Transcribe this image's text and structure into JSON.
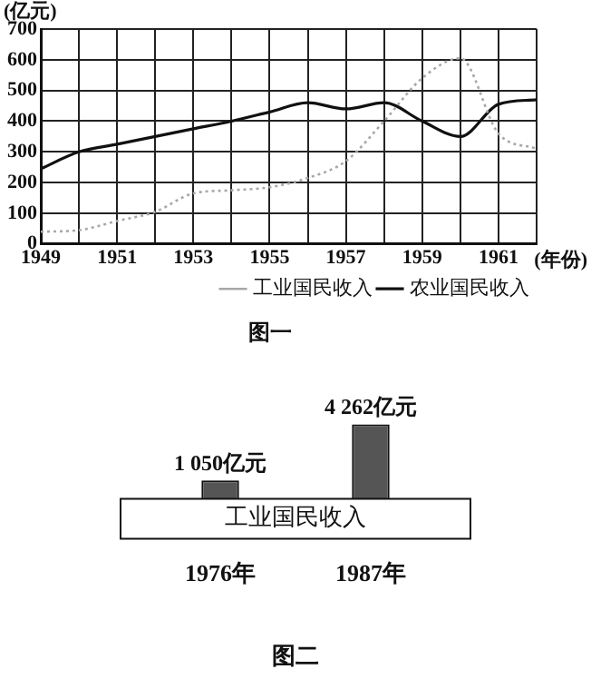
{
  "chart_data": [
    {
      "type": "line",
      "title": "图一",
      "xlabel": "(年份)",
      "ylabel": "(亿元)",
      "x": [
        1949,
        1950,
        1951,
        1952,
        1953,
        1954,
        1955,
        1956,
        1957,
        1958,
        1959,
        1960,
        1961,
        1962
      ],
      "series": [
        {
          "name": "工业国民收入",
          "color": "#a8a8a8",
          "line_style": "dotted",
          "values": [
            40,
            45,
            75,
            105,
            165,
            175,
            185,
            215,
            270,
            400,
            540,
            605,
            360,
            310
          ]
        },
        {
          "name": "农业国民收入",
          "color": "#111111",
          "line_style": "solid",
          "values": [
            245,
            300,
            325,
            350,
            375,
            400,
            430,
            460,
            440,
            460,
            400,
            350,
            455,
            470
          ]
        }
      ],
      "xlim": [
        1949,
        1962
      ],
      "xticks": [
        1949,
        {
          "value": 1950,
          "label": null
        },
        1951,
        {
          "value": 1952,
          "label": null
        },
        1953,
        {
          "value": 1954,
          "label": null
        },
        1955,
        {
          "value": 1956,
          "label": null
        },
        1957,
        {
          "value": 1958,
          "label": null
        },
        1959,
        {
          "value": 1960,
          "label": null
        },
        1961,
        {
          "value": 1962,
          "label": null
        }
      ],
      "ylim": [
        0,
        700
      ],
      "yticks": [
        0,
        100,
        200,
        300,
        400,
        500,
        600,
        700
      ],
      "grid": true,
      "legend": "bottom",
      "marker": "none"
    },
    {
      "type": "bar",
      "title": "图二",
      "categories": [
        "1976年",
        "1987年"
      ],
      "values": [
        1050,
        4262
      ],
      "color": "#555555",
      "value_labels": [
        "1 050亿元",
        "4 262亿元"
      ],
      "annotations": [
        "工业国民收入"
      ]
    }
  ]
}
